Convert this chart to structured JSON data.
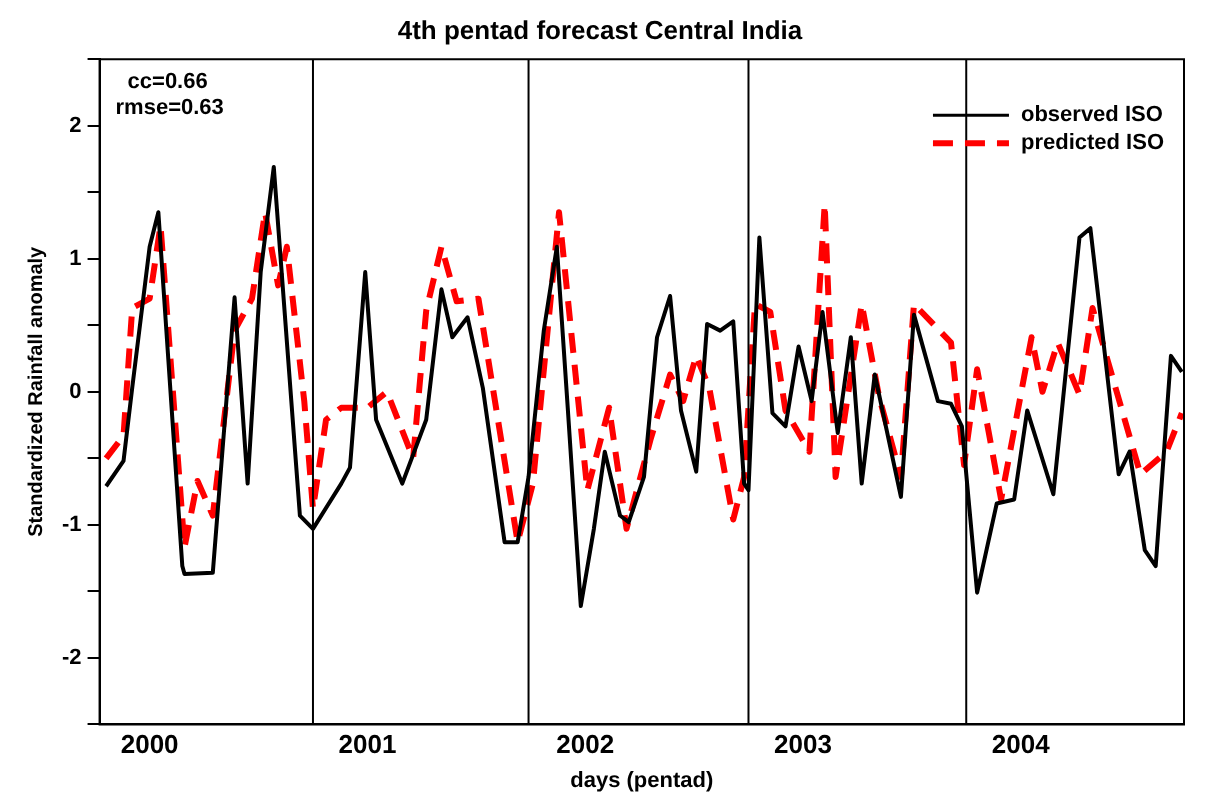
{
  "chart_data": {
    "type": "line",
    "title": "4th pentad forecast Central India",
    "xlabel": "days (pentad)",
    "ylabel": "Standardized Rainfall anomaly",
    "annotations": [
      "cc=0.66",
      "rmse=0.63"
    ],
    "xlim": [
      1999.77,
      2004.75
    ],
    "xticks": [
      2000,
      2001,
      2002,
      2003,
      2004
    ],
    "ylim": [
      -2.5,
      2.5
    ],
    "yticks": [
      {
        "value": -2.5,
        "label": null
      },
      -2,
      {
        "value": -1.5,
        "label": null
      },
      -1,
      {
        "value": -0.5,
        "label": null
      },
      0,
      {
        "value": 0.5,
        "label": null
      },
      1,
      {
        "value": 1.5,
        "label": null
      },
      2,
      {
        "value": 2.5,
        "label": null
      }
    ],
    "grid": false,
    "legend": "top right",
    "marker": "none",
    "ref_lines": [
      {
        "axis": "x",
        "value": 2000.75,
        "color": "#000000"
      },
      {
        "axis": "x",
        "value": 2001.74,
        "color": "#000000"
      },
      {
        "axis": "x",
        "value": 2002.75,
        "color": "#000000"
      },
      {
        "axis": "x",
        "value": 2003.75,
        "color": "#000000"
      }
    ],
    "series": [
      {
        "name": "observed ISO",
        "color": "#000000",
        "line_style": "solid",
        "x": [
          1999.8,
          1999.88,
          1999.92,
          2000.0,
          2000.04,
          2000.15,
          2000.16,
          2000.29,
          2000.39,
          2000.45,
          2000.51,
          2000.57,
          2000.69,
          2000.75,
          2000.88,
          2000.92,
          2000.99,
          2001.04,
          2001.16,
          2001.27,
          2001.34,
          2001.39,
          2001.46,
          2001.53,
          2001.63,
          2001.69,
          2001.74,
          2001.81,
          2001.87,
          2001.92,
          2001.98,
          2002.04,
          2002.09,
          2002.16,
          2002.2,
          2002.27,
          2002.33,
          2002.39,
          2002.44,
          2002.51,
          2002.56,
          2002.62,
          2002.68,
          2002.73,
          2002.75,
          2002.8,
          2002.86,
          2002.92,
          2002.98,
          2003.04,
          2003.09,
          2003.16,
          2003.22,
          2003.27,
          2003.33,
          2003.45,
          2003.51,
          2003.62,
          2003.68,
          2003.73,
          2003.8,
          2003.89,
          2003.97,
          2004.03,
          2004.15,
          2004.27,
          2004.32,
          2004.45,
          2004.5,
          2004.57,
          2004.62,
          2004.69,
          2004.74
        ],
        "values": [
          -0.71,
          -0.52,
          0.03,
          1.09,
          1.35,
          -1.31,
          -1.37,
          -1.36,
          0.71,
          -0.69,
          0.9,
          1.69,
          -0.93,
          -1.03,
          -0.69,
          -0.57,
          0.9,
          -0.21,
          -0.69,
          -0.21,
          0.77,
          0.41,
          0.56,
          0.03,
          -1.13,
          -1.13,
          -0.64,
          0.46,
          1.09,
          -0.12,
          -1.61,
          -1.03,
          -0.45,
          -0.93,
          -0.98,
          -0.64,
          0.41,
          0.72,
          -0.14,
          -0.6,
          0.51,
          0.46,
          0.53,
          -0.69,
          -0.74,
          1.16,
          -0.16,
          -0.26,
          0.34,
          -0.07,
          0.6,
          -0.31,
          0.41,
          -0.69,
          0.13,
          -0.79,
          0.58,
          -0.07,
          -0.09,
          -0.26,
          -1.51,
          -0.84,
          -0.81,
          -0.14,
          -0.77,
          1.16,
          1.23,
          -0.62,
          -0.45,
          -1.19,
          -1.31,
          0.27,
          0.15
        ]
      },
      {
        "name": "predicted ISO",
        "color": "#ff0000",
        "line_style": "dashed",
        "x": [
          1999.8,
          1999.88,
          1999.92,
          2000.0,
          2000.05,
          2000.16,
          2000.22,
          2000.29,
          2000.39,
          2000.47,
          2000.53,
          2000.59,
          2000.63,
          2000.71,
          2000.75,
          2000.81,
          2000.88,
          2001.0,
          2001.09,
          2001.21,
          2001.27,
          2001.34,
          2001.41,
          2001.51,
          2001.69,
          2001.76,
          2001.88,
          2002.01,
          2002.11,
          2002.19,
          2002.3,
          2002.39,
          2002.45,
          2002.51,
          2002.57,
          2002.68,
          2002.73,
          2002.78,
          2002.85,
          2002.92,
          2003.03,
          2003.1,
          2003.15,
          2003.27,
          2003.35,
          2003.45,
          2003.51,
          2003.68,
          2003.74,
          2003.8,
          2003.91,
          2004.05,
          2004.1,
          2004.17,
          2004.27,
          2004.33,
          2004.55,
          2004.67,
          2004.74
        ],
        "values": [
          -0.5,
          -0.33,
          0.63,
          0.7,
          1.25,
          -1.17,
          -0.67,
          -0.93,
          0.46,
          0.7,
          1.35,
          0.8,
          1.09,
          -0.07,
          -0.88,
          -0.21,
          -0.12,
          -0.12,
          0.0,
          -0.5,
          0.61,
          1.09,
          0.68,
          0.7,
          -1.13,
          -0.69,
          1.35,
          -0.74,
          -0.12,
          -1.03,
          -0.36,
          0.13,
          -0.07,
          0.27,
          0.03,
          -0.96,
          -0.64,
          0.66,
          0.6,
          -0.14,
          -0.45,
          1.41,
          -0.64,
          0.66,
          -0.04,
          -0.64,
          0.66,
          0.37,
          -0.55,
          0.17,
          -0.81,
          0.41,
          0.0,
          0.37,
          -0.02,
          0.63,
          -0.62,
          -0.45,
          -0.16
        ]
      }
    ]
  }
}
